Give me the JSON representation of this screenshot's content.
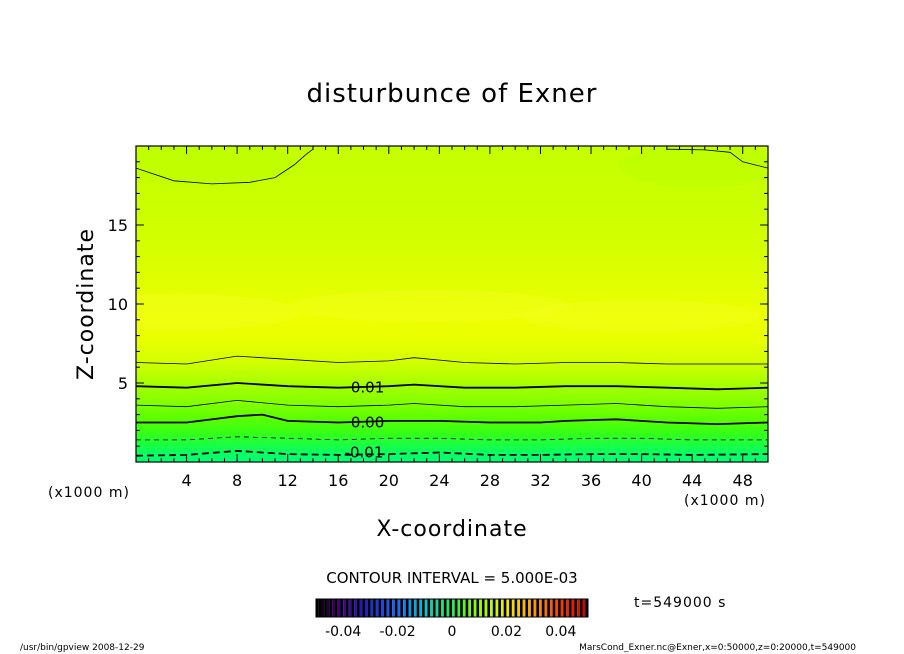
{
  "chart_data": {
    "type": "contour",
    "title": "disturbunce of Exner",
    "xlabel": "X-coordinate",
    "ylabel": "Z-coordinate",
    "x_unit_left": "(x1000 m)",
    "x_unit_right": "(x1000 m)",
    "xlim": [
      0,
      50
    ],
    "ylim": [
      0,
      20
    ],
    "x_ticks": [
      4,
      8,
      12,
      16,
      20,
      24,
      28,
      32,
      36,
      40,
      44,
      48
    ],
    "y_ticks": [
      5,
      10,
      15
    ],
    "contour_interval_text": "CONTOUR INTERVAL = 5.000E-03",
    "contour_labels": [
      {
        "text": "0.01",
        "x": 17,
        "z": 4.7
      },
      {
        "text": "0.00",
        "x": 17,
        "z": 2.5
      },
      {
        "text": "-0.01",
        "x": 16.5,
        "z": 0.6
      }
    ],
    "contour_lines": [
      {
        "level": "0.015",
        "style": "thin",
        "points": [
          [
            0,
            6.3
          ],
          [
            4,
            6.2
          ],
          [
            8,
            6.7
          ],
          [
            12,
            6.5
          ],
          [
            16,
            6.3
          ],
          [
            20,
            6.4
          ],
          [
            22,
            6.6
          ],
          [
            26,
            6.3
          ],
          [
            30,
            6.2
          ],
          [
            34,
            6.3
          ],
          [
            38,
            6.3
          ],
          [
            42,
            6.2
          ],
          [
            46,
            6.2
          ],
          [
            50,
            6.2
          ]
        ]
      },
      {
        "level": "0.01",
        "style": "thick",
        "points": [
          [
            0,
            4.8
          ],
          [
            4,
            4.7
          ],
          [
            8,
            5.0
          ],
          [
            12,
            4.8
          ],
          [
            16,
            4.7
          ],
          [
            20,
            4.8
          ],
          [
            22,
            4.9
          ],
          [
            26,
            4.7
          ],
          [
            30,
            4.7
          ],
          [
            34,
            4.8
          ],
          [
            38,
            4.8
          ],
          [
            42,
            4.7
          ],
          [
            46,
            4.6
          ],
          [
            50,
            4.7
          ]
        ]
      },
      {
        "level": "0.005",
        "style": "thin",
        "points": [
          [
            0,
            3.6
          ],
          [
            4,
            3.5
          ],
          [
            8,
            3.9
          ],
          [
            12,
            3.6
          ],
          [
            16,
            3.5
          ],
          [
            20,
            3.6
          ],
          [
            22,
            3.7
          ],
          [
            26,
            3.5
          ],
          [
            30,
            3.5
          ],
          [
            34,
            3.6
          ],
          [
            38,
            3.7
          ],
          [
            42,
            3.5
          ],
          [
            46,
            3.4
          ],
          [
            50,
            3.5
          ]
        ]
      },
      {
        "level": "0.00",
        "style": "thick",
        "points": [
          [
            0,
            2.5
          ],
          [
            4,
            2.5
          ],
          [
            8,
            2.9
          ],
          [
            10,
            3.0
          ],
          [
            12,
            2.6
          ],
          [
            16,
            2.5
          ],
          [
            20,
            2.6
          ],
          [
            24,
            2.6
          ],
          [
            28,
            2.5
          ],
          [
            32,
            2.5
          ],
          [
            34,
            2.6
          ],
          [
            38,
            2.7
          ],
          [
            42,
            2.5
          ],
          [
            46,
            2.4
          ],
          [
            50,
            2.5
          ]
        ]
      },
      {
        "level": "-0.005",
        "style": "dashed-thin",
        "points": [
          [
            0,
            1.4
          ],
          [
            4,
            1.4
          ],
          [
            8,
            1.6
          ],
          [
            12,
            1.5
          ],
          [
            16,
            1.4
          ],
          [
            20,
            1.5
          ],
          [
            24,
            1.5
          ],
          [
            28,
            1.4
          ],
          [
            32,
            1.4
          ],
          [
            36,
            1.5
          ],
          [
            40,
            1.5
          ],
          [
            44,
            1.4
          ],
          [
            50,
            1.4
          ]
        ]
      },
      {
        "level": "-0.01",
        "style": "dashed-thick",
        "points": [
          [
            0,
            0.4
          ],
          [
            4,
            0.45
          ],
          [
            8,
            0.7
          ],
          [
            12,
            0.5
          ],
          [
            16,
            0.45
          ],
          [
            20,
            0.5
          ],
          [
            24,
            0.6
          ],
          [
            28,
            0.45
          ],
          [
            32,
            0.45
          ],
          [
            36,
            0.5
          ],
          [
            40,
            0.5
          ],
          [
            44,
            0.45
          ],
          [
            50,
            0.5
          ]
        ]
      },
      {
        "level": "0.02",
        "style": "thin",
        "points": [
          [
            0,
            18.6
          ],
          [
            3,
            17.8
          ],
          [
            6,
            17.6
          ],
          [
            9,
            17.7
          ],
          [
            11,
            18.0
          ],
          [
            12.5,
            18.8
          ],
          [
            13.5,
            19.5
          ],
          [
            14,
            19.8
          ]
        ]
      },
      {
        "level": "0.02",
        "style": "thin",
        "points": [
          [
            42,
            19.8
          ],
          [
            45,
            19.75
          ],
          [
            47,
            19.6
          ],
          [
            48,
            19.0
          ],
          [
            50,
            18.6
          ]
        ]
      }
    ],
    "colorbar": {
      "ticks": [
        "-0.04",
        "-0.02",
        "0",
        "0.02",
        "0.04"
      ],
      "range": [
        -0.05,
        0.05
      ]
    },
    "time_text": "t=549000 s",
    "footer_left": "/usr/bin/gpview   2008-12-29",
    "footer_right": "MarsCond_Exner.nc@Exner,x=0:50000,z=0:20000,t=549000"
  },
  "colors": {
    "background": "#ffffff",
    "band_top": "#c8ff00",
    "band_mid": "#e8ff00",
    "band_low1": "#9cff00",
    "band_low2": "#50ff00",
    "band_low3": "#00ff5a"
  }
}
